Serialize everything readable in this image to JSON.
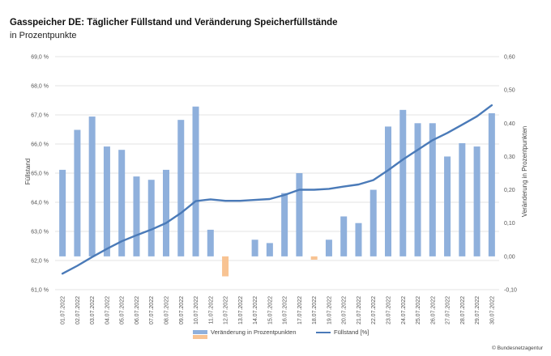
{
  "header": {
    "title": "Gasspeicher DE: Täglicher Füllstand und Veränderung Speicherfüllstände",
    "subtitle": "in Prozentpunkte"
  },
  "legend": {
    "bar_label": "Veränderung in Prozentpunkten",
    "line_label": "Füllstand [%]"
  },
  "credit": "© Bundesnetzagentur",
  "colors": {
    "bar_positive": "#8fb0dc",
    "bar_negative": "#f8c392",
    "line": "#4a7ab8",
    "grid": "#e3e3e3"
  },
  "chart_data": {
    "type": "bar+line",
    "categories": [
      "01.07.2022",
      "02.07.2022",
      "03.07.2022",
      "04.07.2022",
      "05.07.2022",
      "06.07.2022",
      "07.07.2022",
      "08.07.2022",
      "09.07.2022",
      "10.07.2022",
      "11.07.2022",
      "12.07.2022",
      "13.07.2022",
      "14.07.2022",
      "15.07.2022",
      "16.07.2022",
      "17.07.2022",
      "18.07.2022",
      "19.07.2022",
      "20.07.2022",
      "21.07.2022",
      "22.07.2022",
      "23.07.2022",
      "24.07.2022",
      "25.07.2022",
      "26.07.2022",
      "27.07.2022",
      "28.07.2022",
      "29.07.2022",
      "30.07.2022"
    ],
    "y_left": {
      "label": "Füllstand",
      "range": [
        61.0,
        69.0
      ],
      "ticks": [
        "61,0 %",
        "62,0 %",
        "63,0 %",
        "64,0 %",
        "65,0 %",
        "66,0 %",
        "67,0 %",
        "68,0 %",
        "69,0 %"
      ]
    },
    "y_right": {
      "label": "Veränderung in Prozentpunkten",
      "range": [
        -0.1,
        0.6
      ],
      "ticks": [
        "-0,10",
        "0,00",
        "0,10",
        "0,20",
        "0,30",
        "0,40",
        "0,50",
        "0,60"
      ]
    },
    "series": [
      {
        "name": "Veränderung in Prozentpunkten",
        "type": "bar",
        "axis": "right",
        "values": [
          0.26,
          0.38,
          0.42,
          0.33,
          0.32,
          0.24,
          0.23,
          0.26,
          0.41,
          0.45,
          0.08,
          -0.06,
          0.0,
          0.05,
          0.04,
          0.19,
          0.25,
          -0.01,
          0.05,
          0.12,
          0.1,
          0.2,
          0.39,
          0.44,
          0.4,
          0.4,
          0.3,
          0.34,
          0.33,
          0.43
        ]
      },
      {
        "name": "Füllstand [%]",
        "type": "line",
        "axis": "left",
        "values": [
          61.55,
          61.82,
          62.12,
          62.4,
          62.66,
          62.87,
          63.06,
          63.29,
          63.63,
          64.04,
          64.1,
          64.05,
          64.05,
          64.08,
          64.11,
          64.25,
          64.43,
          64.43,
          64.46,
          64.54,
          64.61,
          64.76,
          65.1,
          65.47,
          65.8,
          66.13,
          66.38,
          66.66,
          66.95,
          67.33
        ]
      }
    ]
  }
}
